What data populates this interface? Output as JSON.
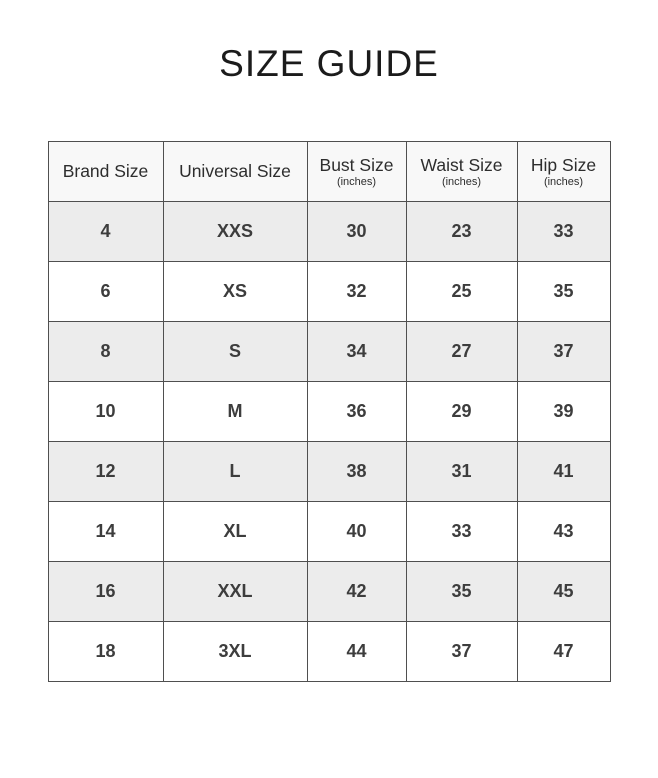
{
  "page": {
    "title": "SIZE GUIDE"
  },
  "table": {
    "columns": [
      {
        "label": "Brand Size",
        "sub": ""
      },
      {
        "label": "Universal Size",
        "sub": ""
      },
      {
        "label": "Bust Size",
        "sub": "(inches)"
      },
      {
        "label": "Waist Size",
        "sub": "(inches)"
      },
      {
        "label": "Hip Size",
        "sub": "(inches)"
      }
    ],
    "rows": [
      [
        "4",
        "XXS",
        "30",
        "23",
        "33"
      ],
      [
        "6",
        "XS",
        "32",
        "25",
        "35"
      ],
      [
        "8",
        "S",
        "34",
        "27",
        "37"
      ],
      [
        "10",
        "M",
        "36",
        "29",
        "39"
      ],
      [
        "12",
        "L",
        "38",
        "31",
        "41"
      ],
      [
        "14",
        "XL",
        "40",
        "33",
        "43"
      ],
      [
        "16",
        "XXL",
        "42",
        "35",
        "45"
      ],
      [
        "18",
        "3XL",
        "44",
        "37",
        "47"
      ]
    ]
  },
  "colors": {
    "header_bg": "#f8f8f8",
    "row_stripe": "#ececec",
    "row_plain": "#ffffff",
    "border": "#4f4f4f",
    "cell_text": "#3d3d3d",
    "title_text": "#1b1b1b"
  }
}
